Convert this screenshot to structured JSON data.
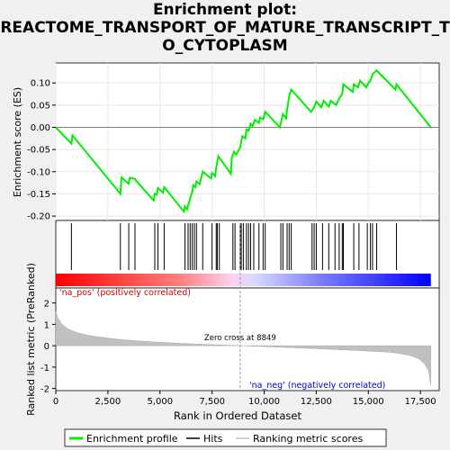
{
  "title_lines": [
    "Enrichment plot:",
    "REACTOME_TRANSPORT_OF_MATURE_TRANSCRIPT_T",
    "O_CYTOPLASM"
  ],
  "colors": {
    "es_line": "#00ee00",
    "hit": "#000000",
    "metric_fill": "#c0c0c0",
    "pos_label": "#cc0000",
    "neg_label": "#0000cc",
    "zero_line": "#808080",
    "background": "#ffffff"
  },
  "chart_data": {
    "type": "line",
    "panels": [
      "enrichment_score",
      "hits",
      "ranked_metric"
    ],
    "xlabel": "Rank in Ordered Dataset",
    "ylabel_top": "Enrichment score (ES)",
    "ylabel_bottom": "Ranked list metric (PreRanked)",
    "xlim": [
      0,
      18400
    ],
    "xticks": [
      0,
      2500,
      5000,
      7500,
      10000,
      12500,
      15000,
      17500
    ],
    "es_ylim": [
      -0.21,
      0.145
    ],
    "es_yticks": [
      -0.2,
      -0.15,
      -0.1,
      -0.05,
      0.0,
      0.05,
      0.1
    ],
    "metric_ylim": [
      -2.1,
      2.7
    ],
    "metric_yticks": [
      -2,
      -1,
      0,
      1,
      2
    ],
    "zero_cross": 8849,
    "zero_cross_label": "Zero cross at 8849",
    "pos_label": "'na_pos' (positively correlated)",
    "neg_label": "'na_neg' (negatively correlated)",
    "legend": [
      "Enrichment profile",
      "Hits",
      "Ranking metric scores"
    ],
    "es_curve": [
      [
        0,
        0.0
      ],
      [
        750,
        -0.037
      ],
      [
        800,
        -0.018
      ],
      [
        3100,
        -0.15
      ],
      [
        3150,
        -0.113
      ],
      [
        3500,
        -0.127
      ],
      [
        3550,
        -0.114
      ],
      [
        3800,
        -0.116
      ],
      [
        3850,
        -0.12
      ],
      [
        4700,
        -0.165
      ],
      [
        4750,
        -0.15
      ],
      [
        4850,
        -0.152
      ],
      [
        4900,
        -0.137
      ],
      [
        5150,
        -0.147
      ],
      [
        5200,
        -0.135
      ],
      [
        6150,
        -0.19
      ],
      [
        6200,
        -0.178
      ],
      [
        6300,
        -0.185
      ],
      [
        6450,
        -0.16
      ],
      [
        6550,
        -0.145
      ],
      [
        6600,
        -0.13
      ],
      [
        6700,
        -0.135
      ],
      [
        6750,
        -0.122
      ],
      [
        6900,
        -0.128
      ],
      [
        7050,
        -0.1
      ],
      [
        7450,
        -0.115
      ],
      [
        7500,
        -0.103
      ],
      [
        7650,
        -0.11
      ],
      [
        7700,
        -0.09
      ],
      [
        7800,
        -0.065
      ],
      [
        8400,
        -0.105
      ],
      [
        8450,
        -0.068
      ],
      [
        8550,
        -0.055
      ],
      [
        8650,
        -0.062
      ],
      [
        8850,
        -0.045
      ],
      [
        8950,
        -0.02
      ],
      [
        9100,
        -0.025
      ],
      [
        9150,
        -0.005
      ],
      [
        9250,
        -0.008
      ],
      [
        9350,
        0.008
      ],
      [
        9450,
        0.003
      ],
      [
        9550,
        0.017
      ],
      [
        9750,
        0.01
      ],
      [
        9800,
        0.022
      ],
      [
        9950,
        0.018
      ],
      [
        10050,
        0.035
      ],
      [
        10750,
        0.0
      ],
      [
        10900,
        0.03
      ],
      [
        11050,
        0.02
      ],
      [
        11100,
        0.04
      ],
      [
        11200,
        0.07
      ],
      [
        11300,
        0.085
      ],
      [
        12250,
        0.035
      ],
      [
        12400,
        0.045
      ],
      [
        12500,
        0.058
      ],
      [
        12750,
        0.045
      ],
      [
        12850,
        0.06
      ],
      [
        13100,
        0.047
      ],
      [
        13200,
        0.06
      ],
      [
        13450,
        0.05
      ],
      [
        13600,
        0.065
      ],
      [
        13750,
        0.075
      ],
      [
        13800,
        0.097
      ],
      [
        14250,
        0.08
      ],
      [
        14300,
        0.097
      ],
      [
        14500,
        0.09
      ],
      [
        14600,
        0.105
      ],
      [
        14900,
        0.09
      ],
      [
        15000,
        0.1
      ],
      [
        15100,
        0.105
      ],
      [
        15200,
        0.12
      ],
      [
        15400,
        0.128
      ],
      [
        16300,
        0.085
      ],
      [
        16350,
        0.097
      ],
      [
        18000,
        0.0
      ]
    ],
    "hits": [
      750,
      3100,
      3500,
      3800,
      4750,
      4900,
      5200,
      6200,
      6350,
      6450,
      6550,
      6650,
      6750,
      7050,
      7500,
      7700,
      7750,
      7850,
      8500,
      8600,
      8850,
      8900,
      9000,
      9150,
      9250,
      9350,
      9500,
      9750,
      9950,
      10050,
      10800,
      10900,
      11100,
      11200,
      11300,
      12300,
      12400,
      12500,
      12800,
      13100,
      13400,
      13600,
      13750,
      13800,
      14300,
      14550,
      14950,
      15100,
      15200,
      15400,
      16350
    ],
    "metric_curve": [
      [
        0,
        1.6
      ],
      [
        100,
        1.3
      ],
      [
        300,
        1.0
      ],
      [
        600,
        0.78
      ],
      [
        1000,
        0.62
      ],
      [
        1500,
        0.5
      ],
      [
        2000,
        0.42
      ],
      [
        3000,
        0.3
      ],
      [
        4000,
        0.22
      ],
      [
        5000,
        0.16
      ],
      [
        6000,
        0.11
      ],
      [
        7000,
        0.07
      ],
      [
        8000,
        0.03
      ],
      [
        8849,
        0.0
      ],
      [
        10000,
        -0.04
      ],
      [
        11000,
        -0.08
      ],
      [
        12000,
        -0.12
      ],
      [
        13000,
        -0.16
      ],
      [
        14000,
        -0.2
      ],
      [
        15000,
        -0.25
      ],
      [
        16000,
        -0.3
      ],
      [
        16500,
        -0.36
      ],
      [
        17000,
        -0.46
      ],
      [
        17400,
        -0.6
      ],
      [
        17700,
        -0.85
      ],
      [
        17900,
        -1.2
      ],
      [
        18000,
        -1.85
      ]
    ]
  }
}
